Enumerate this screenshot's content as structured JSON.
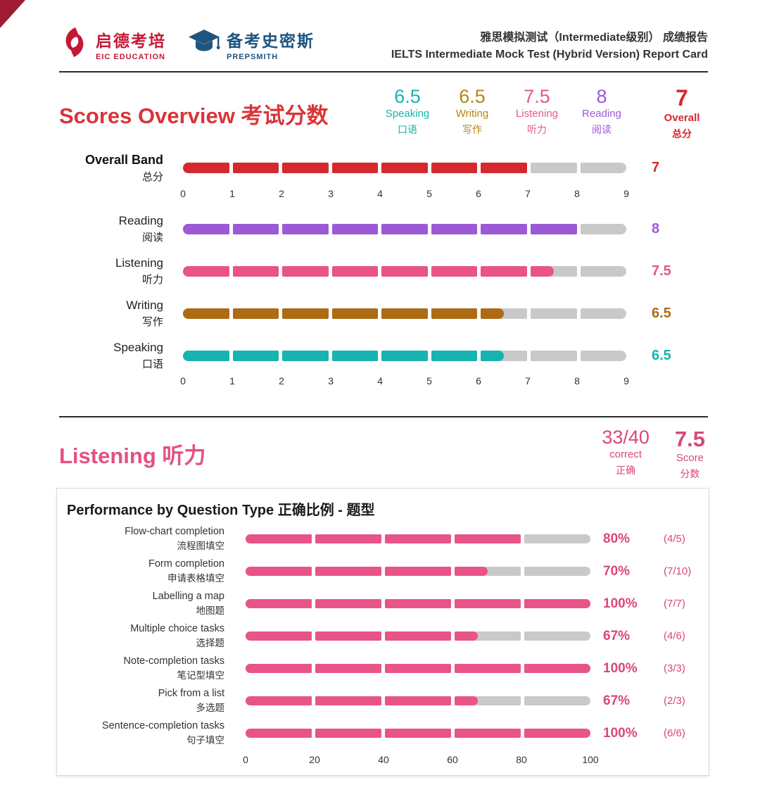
{
  "header": {
    "logo_eic": {
      "cn": "启德考培",
      "en": "EIC EDUCATION"
    },
    "logo_prepsmith": {
      "cn": "备考史密斯",
      "en": "PREPSMITH"
    },
    "title_cn": "雅思模拟测试（Intermediate级别） 成绩报告",
    "title_en": "IELTS Intermediate Mock Test (Hybrid Version) Report Card"
  },
  "colors": {
    "overall_red": "#d7282f",
    "reading_purple": "#9b59d6",
    "listening_pink": "#e8538a",
    "writing_brown": "#ad6b13",
    "speaking_teal": "#17b3b0",
    "track_gray": "#c9c9c9",
    "section_title_red": "#d93439",
    "listening_text_pink": "#d9477d",
    "eic_red": "#c41935",
    "prepsmith_blue": "#1d5580"
  },
  "scores_overview": {
    "title_en": "Scores Overview",
    "title_cn": "考试分数",
    "summary": [
      {
        "value": "6.5",
        "label_en": "Speaking",
        "label_cn": "口语",
        "color": "#17b3b0",
        "emphasis": false
      },
      {
        "value": "6.5",
        "label_en": "Writing",
        "label_cn": "写作",
        "color": "#b8860b",
        "emphasis": false
      },
      {
        "value": "7.5",
        "label_en": "Listening",
        "label_cn": "听力",
        "color": "#e05a85",
        "emphasis": false
      },
      {
        "value": "8",
        "label_en": "Reading",
        "label_cn": "阅读",
        "color": "#9b59d6",
        "emphasis": false
      },
      {
        "value": "7",
        "label_en": "Overall",
        "label_cn": "总分",
        "color": "#d7282f",
        "emphasis": true
      }
    ]
  },
  "listening": {
    "title_en": "Listening",
    "title_cn": "听力",
    "correct": "33/40",
    "correct_label_en": "correct",
    "correct_label_cn": "正确",
    "score": "7.5",
    "score_label_en": "Score",
    "score_label_cn": "分数"
  },
  "performance": {
    "title": "Performance by Question Type 正确比例 - 题型"
  },
  "chart_data": [
    {
      "id": "band-scores",
      "type": "bar",
      "orientation": "horizontal",
      "title": "Scores Overview 考试分数",
      "xlim": [
        0,
        9
      ],
      "max": 9,
      "segments": 9,
      "axis_ticks": [
        "0",
        "1",
        "2",
        "3",
        "4",
        "5",
        "6",
        "7",
        "8",
        "9"
      ],
      "track_color": "#c9c9c9",
      "rows": [
        {
          "label_en": "Overall Band",
          "label_cn": "总分",
          "value": 7,
          "display": "7",
          "color": "#d7282f",
          "bold": true,
          "axis_below": true
        },
        {
          "label_en": "Reading",
          "label_cn": "阅读",
          "value": 8,
          "display": "8",
          "color": "#9b59d6",
          "bold": false,
          "axis_below": false
        },
        {
          "label_en": "Listening",
          "label_cn": "听力",
          "value": 7.5,
          "display": "7.5",
          "color": "#e8538a",
          "bold": false,
          "axis_below": false
        },
        {
          "label_en": "Writing",
          "label_cn": "写作",
          "value": 6.5,
          "display": "6.5",
          "color": "#ad6b13",
          "bold": false,
          "axis_below": false
        },
        {
          "label_en": "Speaking",
          "label_cn": "口语",
          "value": 6.5,
          "display": "6.5",
          "color": "#17b3b0",
          "bold": false,
          "axis_below": true
        }
      ]
    },
    {
      "id": "listening-question-types",
      "type": "bar",
      "orientation": "horizontal",
      "title": "Performance by Question Type 正确比例 - 题型",
      "xlim": [
        0,
        100
      ],
      "max": 100,
      "segments": 5,
      "axis_ticks": [
        "0",
        "20",
        "40",
        "60",
        "80",
        "100"
      ],
      "bar_color": "#e8538a",
      "track_color": "#c9c9c9",
      "text_color": "#d9477d",
      "rows": [
        {
          "label_en": "Flow-chart completion",
          "label_cn": "流程图填空",
          "value": 80,
          "percent": "80%",
          "fraction": "(4/5)"
        },
        {
          "label_en": "Form completion",
          "label_cn": "申请表格填空",
          "value": 70,
          "percent": "70%",
          "fraction": "(7/10)"
        },
        {
          "label_en": "Labelling a map",
          "label_cn": "地图题",
          "value": 100,
          "percent": "100%",
          "fraction": "(7/7)"
        },
        {
          "label_en": "Multiple choice tasks",
          "label_cn": "选择题",
          "value": 67,
          "percent": "67%",
          "fraction": "(4/6)"
        },
        {
          "label_en": "Note-completion tasks",
          "label_cn": "笔记型填空",
          "value": 100,
          "percent": "100%",
          "fraction": "(3/3)"
        },
        {
          "label_en": "Pick from a list",
          "label_cn": "多选题",
          "value": 67,
          "percent": "67%",
          "fraction": "(2/3)"
        },
        {
          "label_en": "Sentence-completion tasks",
          "label_cn": "句子填空",
          "value": 100,
          "percent": "100%",
          "fraction": "(6/6)"
        }
      ]
    }
  ]
}
